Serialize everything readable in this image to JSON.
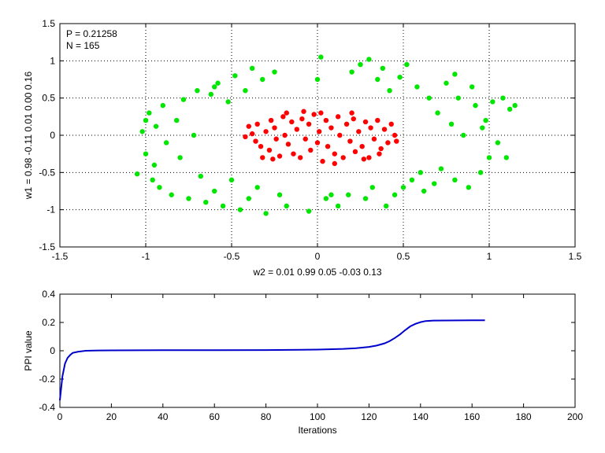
{
  "chart_data": [
    {
      "type": "scatter",
      "xlabel": "w2 = 0.01  0.99  0.05  -0.03  0.13",
      "ylabel": "w1 = 0.98  -0.11  0.01  0.00  0.16",
      "xlim": [
        -1.5,
        1.5
      ],
      "ylim": [
        -1.5,
        1.5
      ],
      "xticks": [
        -1.5,
        -1,
        -0.5,
        0,
        0.5,
        1,
        1.5
      ],
      "yticks": [
        -1.5,
        -1,
        -0.5,
        0,
        0.5,
        1,
        1.5
      ],
      "grid": true,
      "annotations": [
        "P = 0.21258",
        "N = 165"
      ],
      "series": [
        {
          "color": "#ff0000",
          "points": [
            [
              -0.4,
              0.12
            ],
            [
              -0.38,
              0.02
            ],
            [
              -0.36,
              -0.08
            ],
            [
              -0.35,
              0.15
            ],
            [
              -0.33,
              -0.15
            ],
            [
              -0.3,
              0.05
            ],
            [
              -0.28,
              -0.2
            ],
            [
              -0.27,
              0.2
            ],
            [
              -0.25,
              0.1
            ],
            [
              -0.24,
              -0.05
            ],
            [
              -0.22,
              -0.28
            ],
            [
              -0.2,
              0.25
            ],
            [
              -0.19,
              0.0
            ],
            [
              -0.17,
              -0.12
            ],
            [
              -0.15,
              0.18
            ],
            [
              -0.14,
              -0.25
            ],
            [
              -0.12,
              0.08
            ],
            [
              -0.1,
              -0.3
            ],
            [
              -0.09,
              0.22
            ],
            [
              -0.07,
              -0.05
            ],
            [
              -0.05,
              0.15
            ],
            [
              -0.04,
              -0.2
            ],
            [
              -0.02,
              0.28
            ],
            [
              0.0,
              -0.1
            ],
            [
              0.01,
              0.05
            ],
            [
              0.03,
              -0.35
            ],
            [
              0.05,
              0.2
            ],
            [
              0.06,
              -0.15
            ],
            [
              0.08,
              0.1
            ],
            [
              0.1,
              -0.25
            ],
            [
              0.12,
              0.25
            ],
            [
              0.13,
              0.0
            ],
            [
              0.15,
              -0.3
            ],
            [
              0.17,
              0.15
            ],
            [
              0.19,
              -0.08
            ],
            [
              0.21,
              0.22
            ],
            [
              0.22,
              -0.22
            ],
            [
              0.24,
              0.05
            ],
            [
              0.26,
              -0.15
            ],
            [
              0.28,
              0.18
            ],
            [
              0.3,
              -0.3
            ],
            [
              0.31,
              0.1
            ],
            [
              0.33,
              -0.05
            ],
            [
              0.35,
              0.2
            ],
            [
              0.37,
              -0.18
            ],
            [
              0.39,
              0.08
            ],
            [
              0.41,
              -0.1
            ],
            [
              0.43,
              0.15
            ],
            [
              0.45,
              0.0
            ],
            [
              0.46,
              -0.08
            ],
            [
              -0.32,
              -0.3
            ],
            [
              -0.26,
              -0.32
            ],
            [
              -0.18,
              0.3
            ],
            [
              -0.08,
              0.32
            ],
            [
              0.02,
              0.3
            ],
            [
              0.1,
              -0.38
            ],
            [
              0.2,
              0.3
            ],
            [
              0.27,
              -0.32
            ],
            [
              0.36,
              -0.25
            ],
            [
              -0.42,
              -0.02
            ]
          ]
        },
        {
          "color": "#00e600",
          "points": [
            [
              -1.05,
              -0.52
            ],
            [
              -1.02,
              0.05
            ],
            [
              -1.0,
              -0.25
            ],
            [
              -0.98,
              0.3
            ],
            [
              -0.96,
              -0.6
            ],
            [
              -0.94,
              0.12
            ],
            [
              -0.92,
              -0.7
            ],
            [
              -0.9,
              0.4
            ],
            [
              -0.88,
              -0.1
            ],
            [
              -0.85,
              -0.8
            ],
            [
              -0.82,
              0.2
            ],
            [
              -0.8,
              -0.3
            ],
            [
              -0.78,
              0.48
            ],
            [
              -0.75,
              -0.85
            ],
            [
              -0.72,
              0.0
            ],
            [
              -0.7,
              0.6
            ],
            [
              -0.68,
              -0.55
            ],
            [
              -0.65,
              -0.9
            ],
            [
              -0.62,
              0.55
            ],
            [
              -0.6,
              -0.75
            ],
            [
              -0.58,
              0.7
            ],
            [
              -0.55,
              -0.95
            ],
            [
              -0.52,
              0.45
            ],
            [
              -0.5,
              -0.6
            ],
            [
              -0.48,
              0.8
            ],
            [
              -0.45,
              -1.0
            ],
            [
              -0.42,
              0.6
            ],
            [
              -0.4,
              -0.85
            ],
            [
              -0.38,
              0.9
            ],
            [
              -0.35,
              -0.7
            ],
            [
              -0.32,
              0.75
            ],
            [
              -0.3,
              -1.05
            ],
            [
              -0.25,
              0.85
            ],
            [
              -0.22,
              -0.8
            ],
            [
              -0.18,
              -0.95
            ],
            [
              -0.05,
              -1.02
            ],
            [
              0.0,
              0.75
            ],
            [
              0.02,
              1.05
            ],
            [
              0.05,
              -0.85
            ],
            [
              0.08,
              -0.8
            ],
            [
              0.12,
              -0.95
            ],
            [
              0.18,
              -0.8
            ],
            [
              0.2,
              0.85
            ],
            [
              0.25,
              0.95
            ],
            [
              0.28,
              -0.85
            ],
            [
              0.3,
              1.02
            ],
            [
              0.32,
              -0.7
            ],
            [
              0.35,
              0.75
            ],
            [
              0.38,
              0.9
            ],
            [
              0.4,
              -0.95
            ],
            [
              0.42,
              0.6
            ],
            [
              0.45,
              -0.8
            ],
            [
              0.48,
              0.78
            ],
            [
              0.5,
              -0.7
            ],
            [
              0.52,
              0.95
            ],
            [
              0.55,
              -0.6
            ],
            [
              0.58,
              0.65
            ],
            [
              0.6,
              -0.5
            ],
            [
              0.62,
              -0.75
            ],
            [
              0.65,
              0.5
            ],
            [
              0.68,
              -0.65
            ],
            [
              0.7,
              0.3
            ],
            [
              0.72,
              -0.45
            ],
            [
              0.75,
              0.7
            ],
            [
              0.78,
              0.15
            ],
            [
              0.8,
              -0.6
            ],
            [
              0.82,
              0.5
            ],
            [
              0.85,
              0.0
            ],
            [
              0.88,
              -0.7
            ],
            [
              0.9,
              0.65
            ],
            [
              0.92,
              0.4
            ],
            [
              0.95,
              -0.5
            ],
            [
              0.98,
              0.2
            ],
            [
              1.0,
              -0.3
            ],
            [
              1.02,
              0.45
            ],
            [
              1.05,
              -0.1
            ],
            [
              1.08,
              0.5
            ],
            [
              1.1,
              -0.3
            ],
            [
              1.12,
              0.35
            ],
            [
              1.15,
              0.4
            ],
            [
              -1.0,
              0.2
            ],
            [
              -0.95,
              -0.4
            ],
            [
              0.96,
              0.1
            ],
            [
              0.8,
              0.82
            ],
            [
              -0.6,
              0.65
            ]
          ]
        }
      ]
    },
    {
      "type": "line",
      "xlabel": "Iterations",
      "ylabel": "PPI value",
      "xlim": [
        0,
        200
      ],
      "ylim": [
        -0.4,
        0.4
      ],
      "xticks": [
        0,
        20,
        40,
        60,
        80,
        100,
        120,
        140,
        160,
        180,
        200
      ],
      "yticks": [
        -0.4,
        -0.2,
        0,
        0.2,
        0.4
      ],
      "grid": false,
      "series": [
        {
          "color": "#0000cc",
          "x": [
            0,
            1,
            2,
            3,
            4,
            5,
            7,
            10,
            15,
            20,
            40,
            60,
            80,
            100,
            110,
            115,
            120,
            123,
            126,
            128,
            130,
            132,
            134,
            136,
            138,
            140,
            142,
            145,
            150,
            160,
            165
          ],
          "y": [
            -0.35,
            -0.18,
            -0.09,
            -0.05,
            -0.03,
            -0.015,
            -0.007,
            0.0,
            0.002,
            0.003,
            0.004,
            0.004,
            0.005,
            0.008,
            0.013,
            0.018,
            0.027,
            0.037,
            0.052,
            0.068,
            0.09,
            0.115,
            0.145,
            0.172,
            0.19,
            0.202,
            0.21,
            0.213,
            0.214,
            0.215,
            0.215
          ]
        }
      ]
    }
  ]
}
